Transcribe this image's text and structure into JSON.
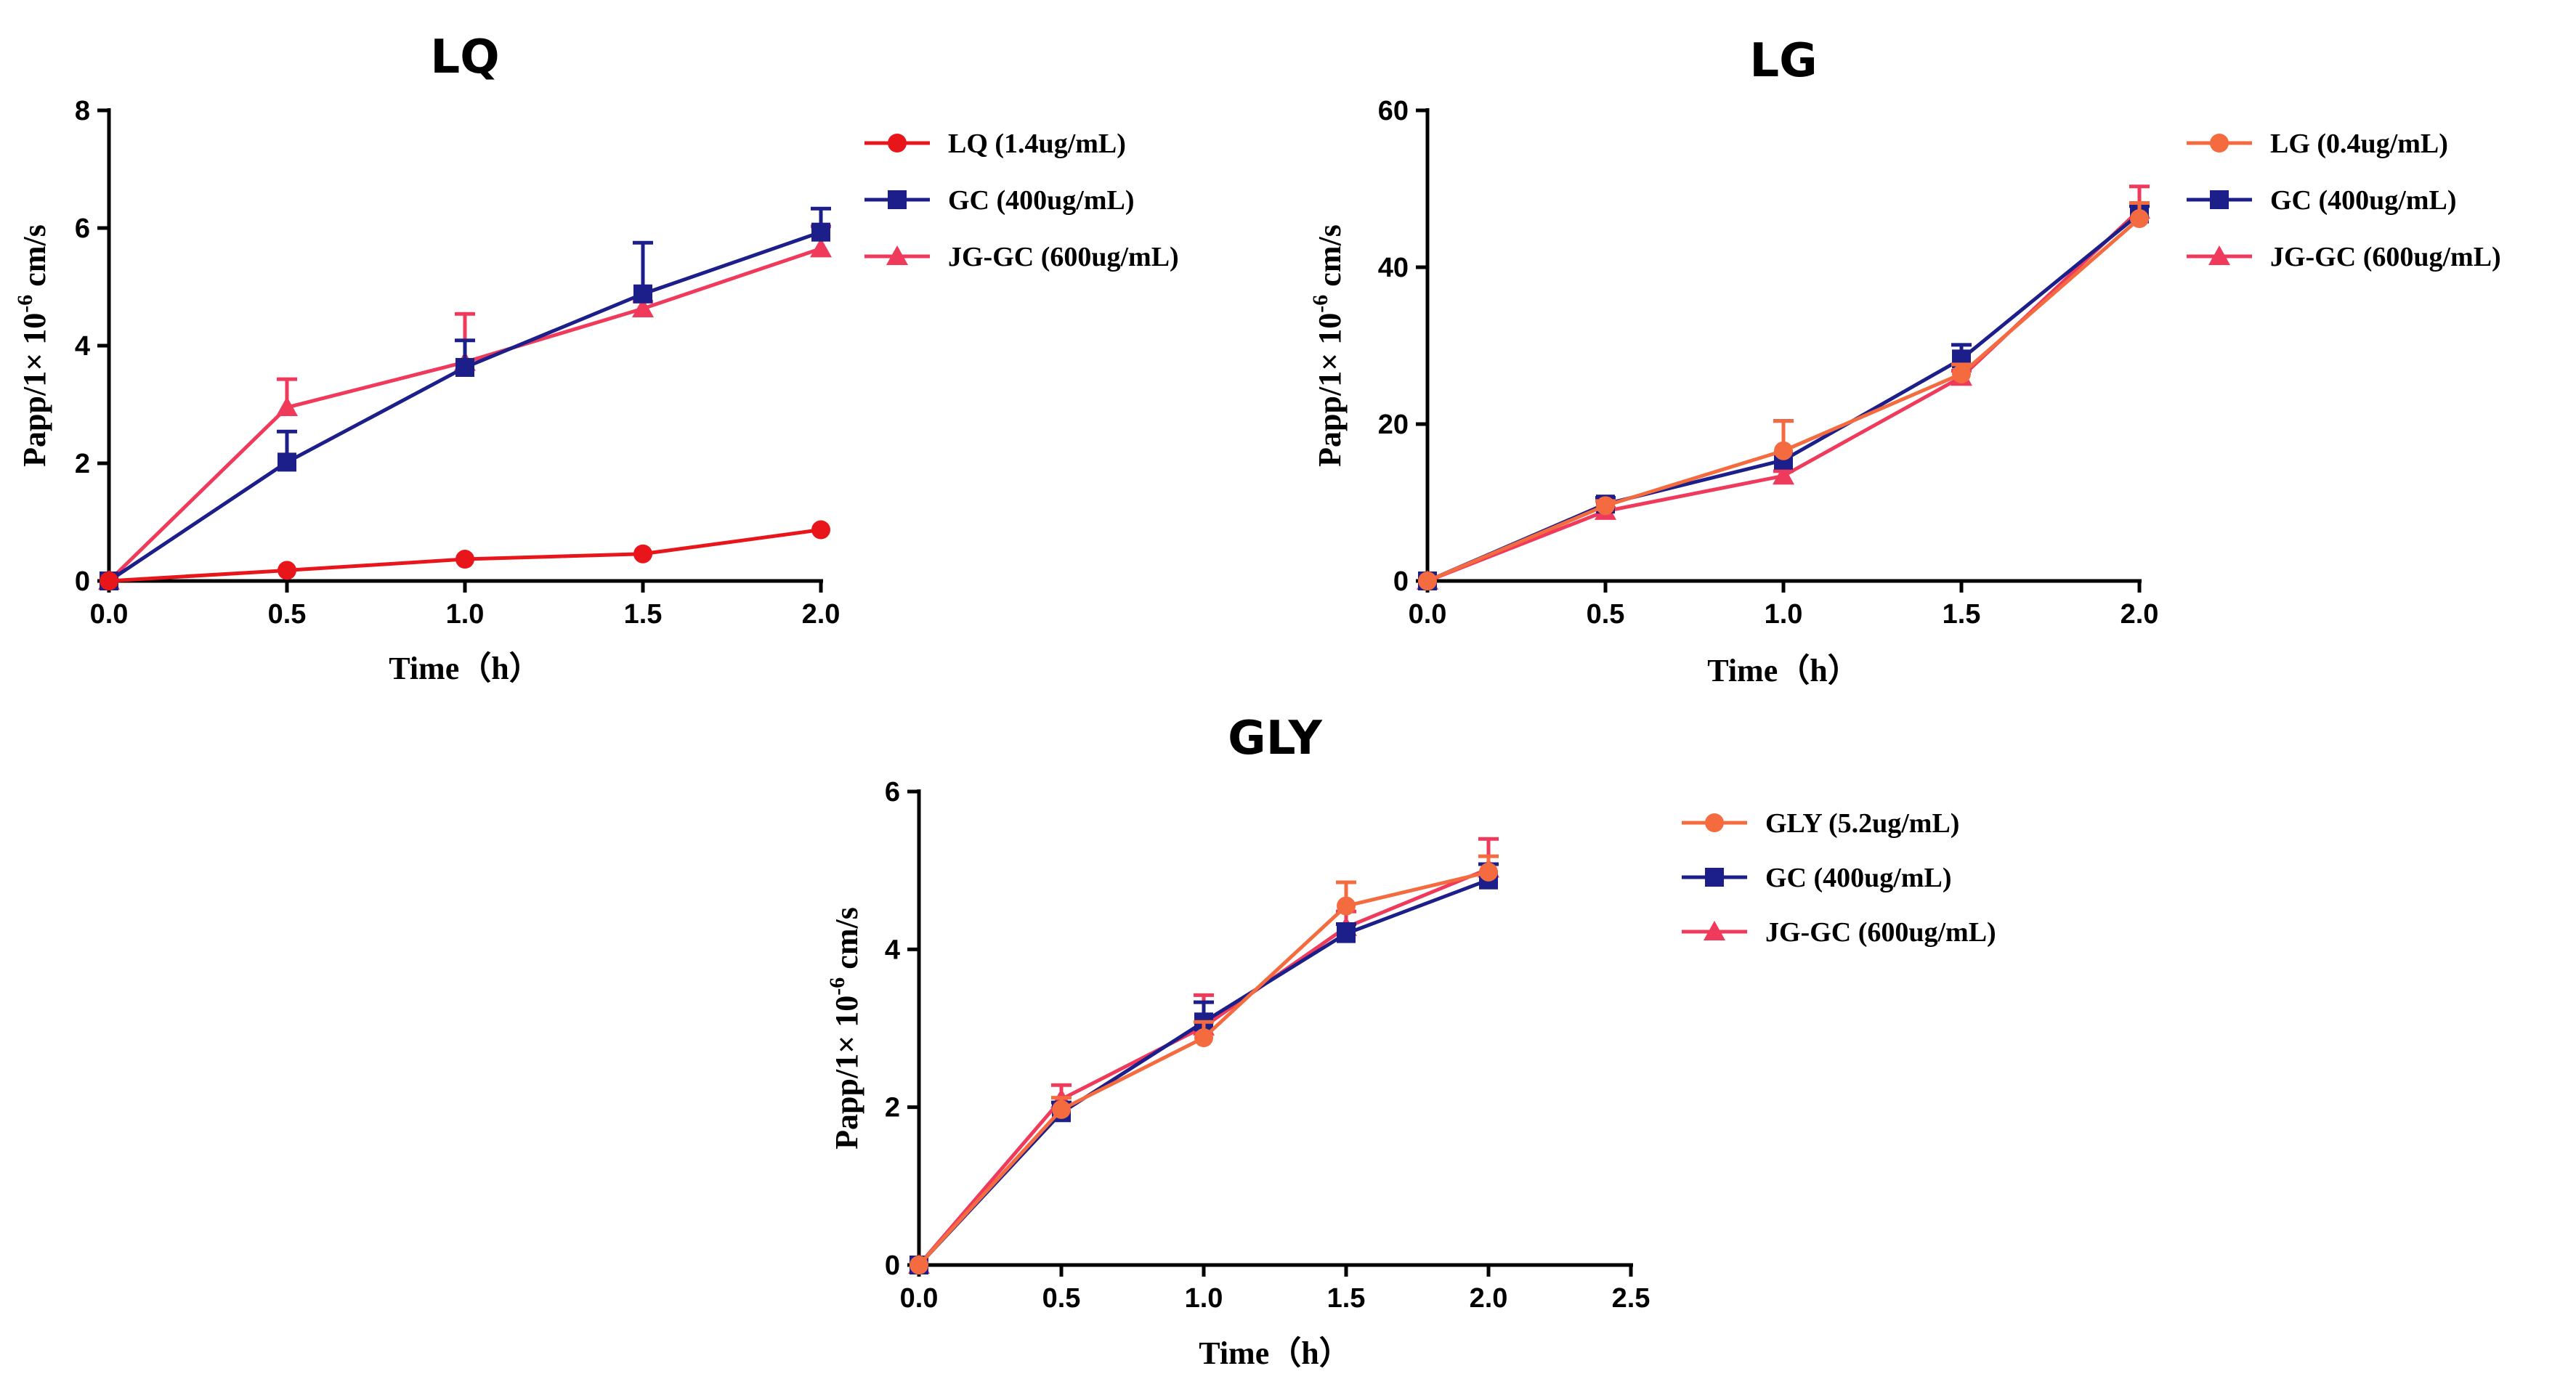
{
  "chart_data": [
    {
      "type": "line",
      "title": "LQ",
      "xlabel": "Time（h）",
      "ylabel_main": "Papp/1× 10",
      "ylabel_exp": "-6",
      "ylabel_unit": " cm/s",
      "xlim": [
        0,
        2.0
      ],
      "ylim": [
        0,
        8
      ],
      "xticks": [
        "0.0",
        "0.5",
        "1.0",
        "1.5",
        "2.0"
      ],
      "yticks": [
        "0",
        "2",
        "4",
        "6",
        "8"
      ],
      "x": [
        0,
        0.5,
        1.0,
        1.5,
        2.0
      ],
      "series": [
        {
          "name": "LQ (1.4ug/mL)",
          "marker": "circle",
          "color": "#e8161b",
          "values": [
            0,
            0.18,
            0.37,
            0.46,
            0.87
          ],
          "errors": [
            0,
            0,
            0,
            0,
            0
          ]
        },
        {
          "name": "GC (400ug/mL)",
          "marker": "square",
          "color": "#1c1f8a",
          "values": [
            0,
            2.02,
            3.63,
            4.88,
            5.93
          ],
          "errors": [
            0,
            0.52,
            0.46,
            0.87,
            0.4
          ]
        },
        {
          "name": "JG-GC (600ug/mL)",
          "marker": "triangle",
          "color": "#f03a5c",
          "values": [
            0,
            2.95,
            3.72,
            4.63,
            5.65
          ],
          "errors": [
            0,
            0.48,
            0.82,
            0.12,
            0.38
          ]
        }
      ]
    },
    {
      "type": "line",
      "title": "LG",
      "xlabel": "Time（h）",
      "ylabel_main": "Papp/1× 10",
      "ylabel_exp": "-6",
      "ylabel_unit": " cm/s",
      "xlim": [
        0,
        2.0
      ],
      "ylim": [
        0,
        60
      ],
      "xticks": [
        "0.0",
        "0.5",
        "1.0",
        "1.5",
        "2.0"
      ],
      "yticks": [
        "0",
        "20",
        "40",
        "60"
      ],
      "x": [
        0,
        0.5,
        1.0,
        1.5,
        2.0
      ],
      "series": [
        {
          "name": "LG (0.4ug/mL)",
          "marker": "circle",
          "color": "#f46b3f",
          "values": [
            0,
            9.6,
            16.6,
            26.4,
            46.2
          ],
          "errors": [
            0,
            0.6,
            3.8,
            1.2,
            2.0
          ]
        },
        {
          "name": "GC (400ug/mL)",
          "marker": "square",
          "color": "#1c1f8a",
          "values": [
            0,
            9.8,
            15.4,
            28.3,
            46.8
          ],
          "errors": [
            0,
            0.8,
            5.0,
            1.8,
            1.0
          ]
        },
        {
          "name": "JG-GC (600ug/mL)",
          "marker": "triangle",
          "color": "#f03a5c",
          "values": [
            0,
            8.9,
            13.4,
            26.0,
            47.3
          ],
          "errors": [
            0,
            0.4,
            0.6,
            0.8,
            3.0
          ]
        }
      ]
    },
    {
      "type": "line",
      "title": "GLY",
      "xlabel": "Time（h）",
      "ylabel_main": "Papp/1× 10",
      "ylabel_exp": "-6",
      "ylabel_unit": " cm/s",
      "xlim": [
        0,
        2.5
      ],
      "ylim": [
        0,
        6
      ],
      "xticks": [
        "0.0",
        "0.5",
        "1.0",
        "1.5",
        "2.0",
        "2.5"
      ],
      "yticks": [
        "0",
        "2",
        "4",
        "6"
      ],
      "x": [
        0,
        0.5,
        1.0,
        1.5,
        2.0
      ],
      "series": [
        {
          "name": "GLY (5.2ug/mL)",
          "marker": "circle",
          "color": "#f46b3f",
          "values": [
            0,
            1.97,
            2.88,
            4.55,
            4.98
          ],
          "errors": [
            0,
            0.15,
            0.2,
            0.3,
            0.2
          ]
        },
        {
          "name": "GC (400ug/mL)",
          "marker": "square",
          "color": "#1c1f8a",
          "values": [
            0,
            1.93,
            3.08,
            4.2,
            4.88
          ],
          "errors": [
            0,
            0.13,
            0.25,
            0.12,
            0.2
          ]
        },
        {
          "name": "JG-GC (600ug/mL)",
          "marker": "triangle",
          "color": "#f03a5c",
          "values": [
            0,
            2.1,
            3.02,
            4.28,
            5.02
          ],
          "errors": [
            0,
            0.18,
            0.4,
            0.2,
            0.38
          ]
        }
      ]
    }
  ]
}
